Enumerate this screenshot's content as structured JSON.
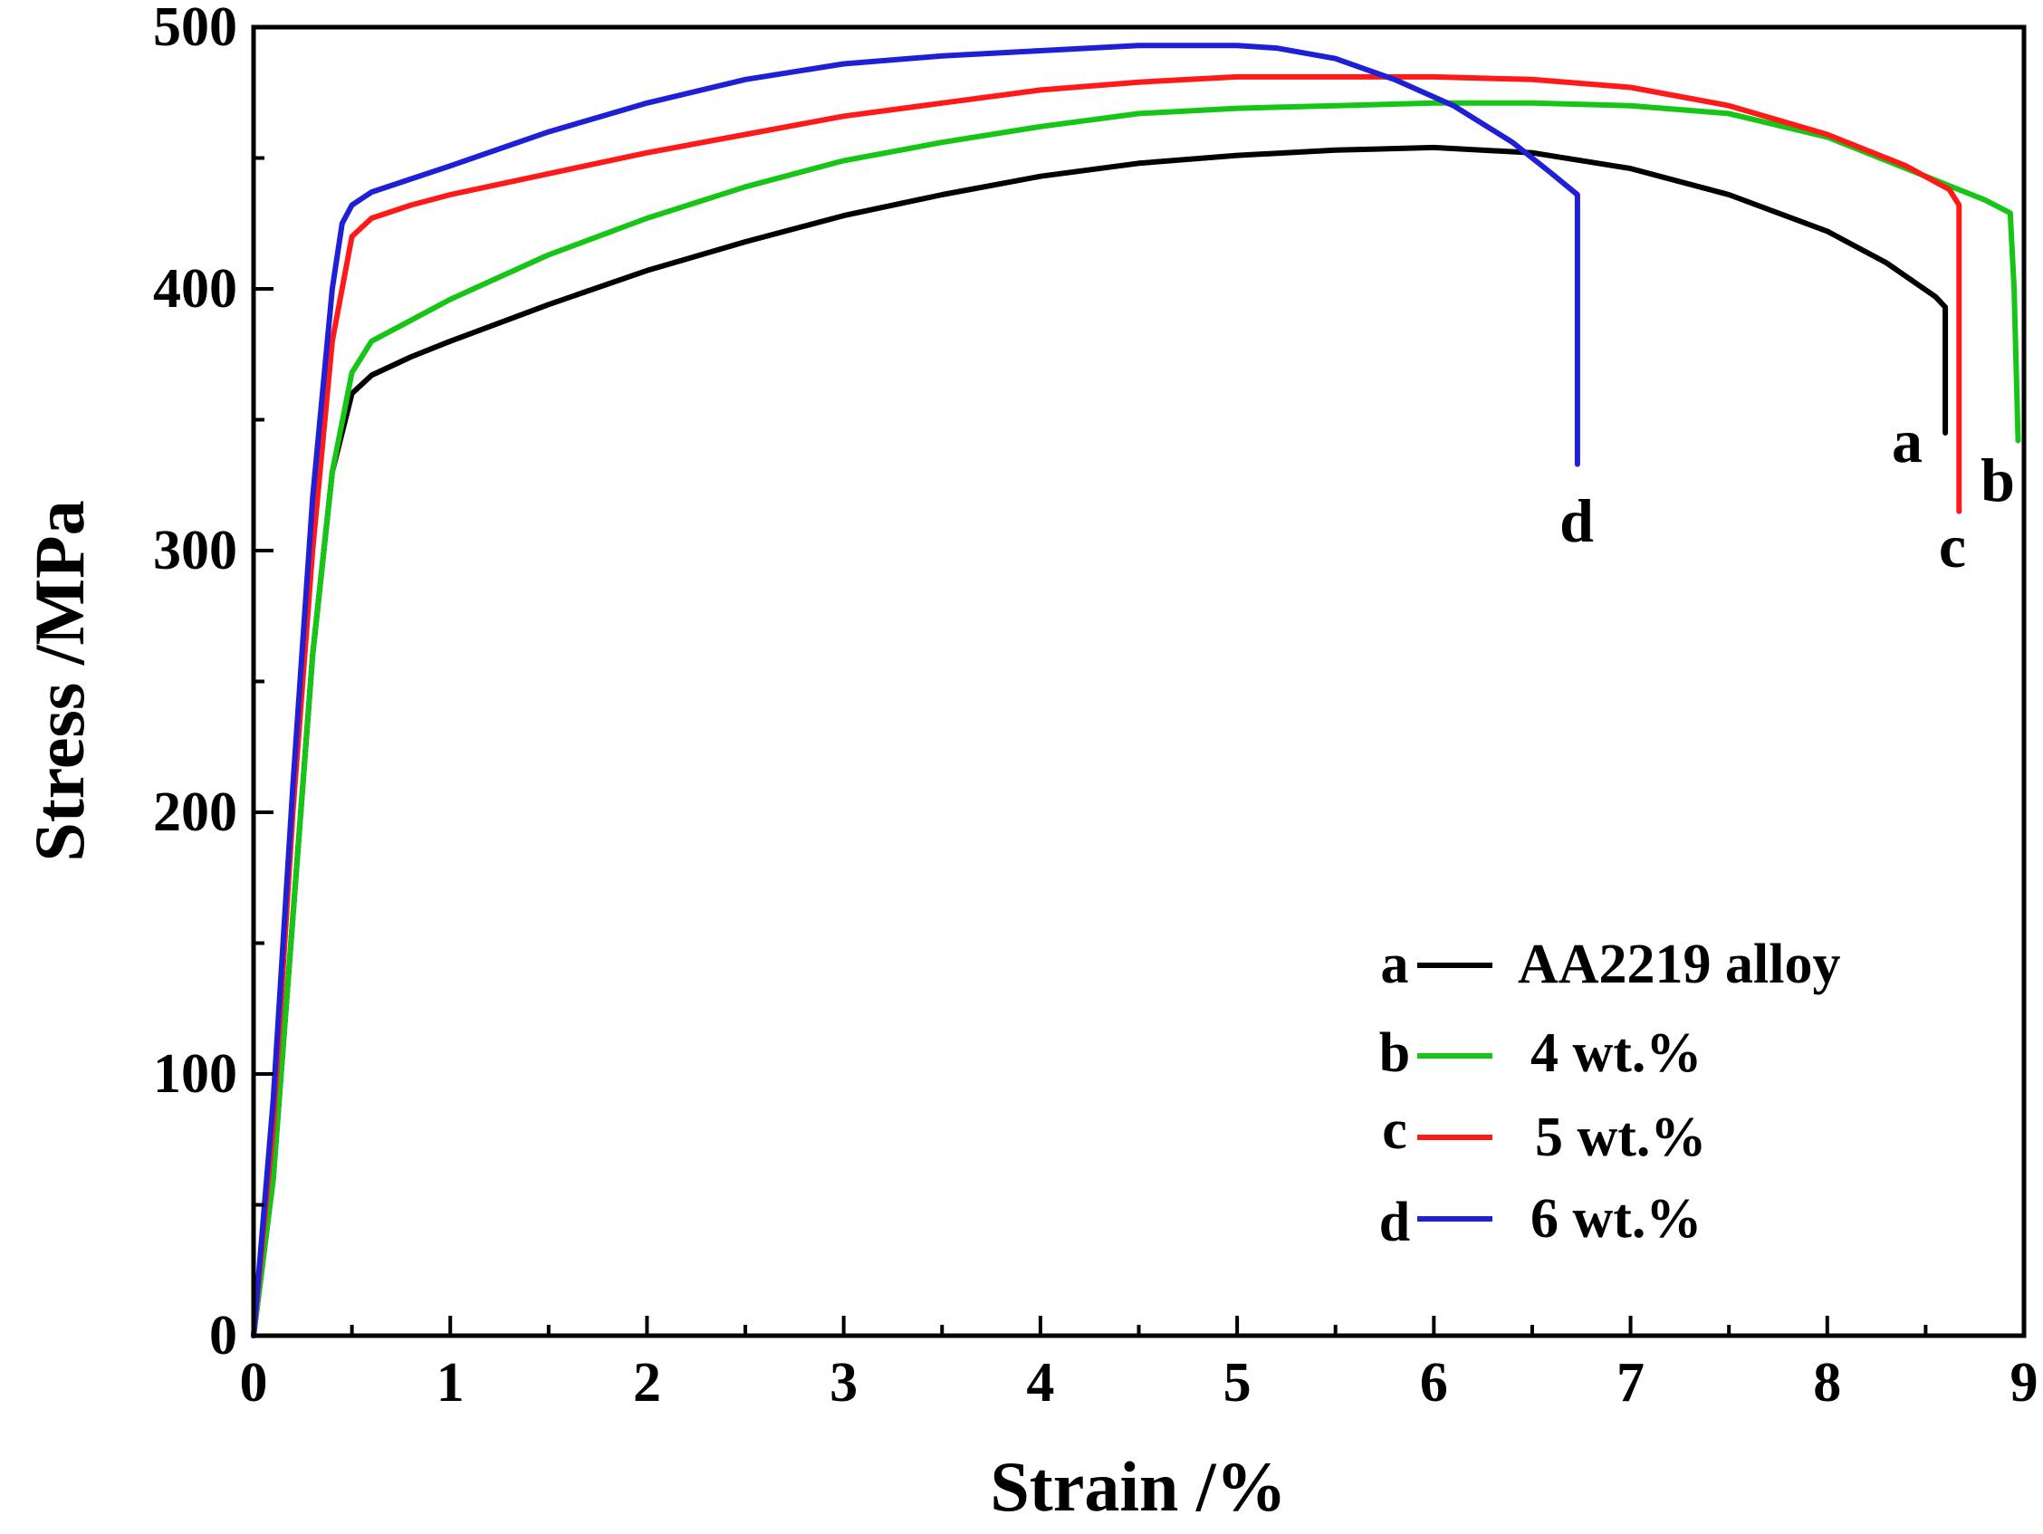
{
  "chart_data": {
    "type": "line",
    "title": "",
    "xlabel": "Strain /%",
    "ylabel": "Stress /MPa",
    "xlim": [
      0,
      9
    ],
    "ylim": [
      0,
      500
    ],
    "xticks": [
      "0",
      "1",
      "2",
      "3",
      "4",
      "5",
      "6",
      "7",
      "8",
      "9"
    ],
    "yticks": [
      "0",
      "100",
      "200",
      "300",
      "400",
      "500"
    ],
    "x_minor_step": 0.5,
    "y_minor_step": 50,
    "grid": false,
    "legend_position": "bottom-right",
    "series": [
      {
        "letter": "a",
        "name": "AA2219 alloy",
        "color": "#000000",
        "points": [
          [
            0,
            0
          ],
          [
            0.1,
            60
          ],
          [
            0.2,
            160
          ],
          [
            0.3,
            260
          ],
          [
            0.4,
            330
          ],
          [
            0.5,
            360
          ],
          [
            0.6,
            367
          ],
          [
            0.8,
            374
          ],
          [
            1,
            380
          ],
          [
            1.5,
            394
          ],
          [
            2,
            407
          ],
          [
            2.5,
            418
          ],
          [
            3,
            428
          ],
          [
            3.5,
            436
          ],
          [
            4,
            443
          ],
          [
            4.5,
            448
          ],
          [
            5,
            451
          ],
          [
            5.5,
            453
          ],
          [
            6,
            454
          ],
          [
            6.5,
            452
          ],
          [
            7,
            446
          ],
          [
            7.5,
            436
          ],
          [
            8,
            422
          ],
          [
            8.3,
            410
          ],
          [
            8.55,
            397
          ],
          [
            8.6,
            393
          ],
          [
            8.6,
            345
          ]
        ]
      },
      {
        "letter": "b",
        "name": "4 wt.%",
        "color": "#16c516",
        "points": [
          [
            0,
            0
          ],
          [
            0.1,
            60
          ],
          [
            0.2,
            160
          ],
          [
            0.3,
            260
          ],
          [
            0.4,
            330
          ],
          [
            0.5,
            368
          ],
          [
            0.6,
            380
          ],
          [
            0.8,
            388
          ],
          [
            1,
            396
          ],
          [
            1.5,
            413
          ],
          [
            2,
            427
          ],
          [
            2.5,
            439
          ],
          [
            3,
            449
          ],
          [
            3.5,
            456
          ],
          [
            4,
            462
          ],
          [
            4.5,
            467
          ],
          [
            5,
            469
          ],
          [
            5.5,
            470
          ],
          [
            6,
            471
          ],
          [
            6.5,
            471
          ],
          [
            7,
            470
          ],
          [
            7.5,
            467
          ],
          [
            8,
            458
          ],
          [
            8.5,
            443
          ],
          [
            8.8,
            434
          ],
          [
            8.93,
            429
          ],
          [
            8.95,
            400
          ],
          [
            8.97,
            342
          ]
        ]
      },
      {
        "letter": "c",
        "name": "5 wt.%",
        "color": "#ff1a1a",
        "points": [
          [
            0,
            0
          ],
          [
            0.1,
            80
          ],
          [
            0.2,
            200
          ],
          [
            0.3,
            300
          ],
          [
            0.4,
            380
          ],
          [
            0.5,
            420
          ],
          [
            0.6,
            427
          ],
          [
            0.8,
            432
          ],
          [
            1,
            436
          ],
          [
            1.5,
            444
          ],
          [
            2,
            452
          ],
          [
            2.5,
            459
          ],
          [
            3,
            466
          ],
          [
            3.5,
            471
          ],
          [
            4,
            476
          ],
          [
            4.5,
            479
          ],
          [
            5,
            481
          ],
          [
            5.5,
            481
          ],
          [
            6,
            481
          ],
          [
            6.5,
            480
          ],
          [
            7,
            477
          ],
          [
            7.5,
            470
          ],
          [
            8,
            459
          ],
          [
            8.4,
            447
          ],
          [
            8.62,
            438
          ],
          [
            8.67,
            432
          ],
          [
            8.67,
            315
          ]
        ]
      },
      {
        "letter": "d",
        "name": "6 wt.%",
        "color": "#1f1fd6",
        "points": [
          [
            0,
            0
          ],
          [
            0.1,
            90
          ],
          [
            0.2,
            210
          ],
          [
            0.3,
            320
          ],
          [
            0.4,
            400
          ],
          [
            0.45,
            425
          ],
          [
            0.5,
            432
          ],
          [
            0.6,
            437
          ],
          [
            0.8,
            442
          ],
          [
            1,
            447
          ],
          [
            1.5,
            460
          ],
          [
            2,
            471
          ],
          [
            2.5,
            480
          ],
          [
            3,
            486
          ],
          [
            3.5,
            489
          ],
          [
            4,
            491
          ],
          [
            4.5,
            493
          ],
          [
            5,
            493
          ],
          [
            5.2,
            492
          ],
          [
            5.5,
            488
          ],
          [
            5.8,
            480
          ],
          [
            6.1,
            470
          ],
          [
            6.4,
            456
          ],
          [
            6.6,
            444
          ],
          [
            6.73,
            436
          ],
          [
            6.73,
            333
          ]
        ]
      }
    ],
    "end_labels": [
      "a",
      "b",
      "c",
      "d"
    ],
    "legend": [
      {
        "letter": "a",
        "label": "AA2219 alloy"
      },
      {
        "letter": "b",
        "label": "4 wt.%"
      },
      {
        "letter": "c",
        "label": "5 wt.%"
      },
      {
        "letter": "d",
        "label": "6 wt.%"
      }
    ]
  }
}
